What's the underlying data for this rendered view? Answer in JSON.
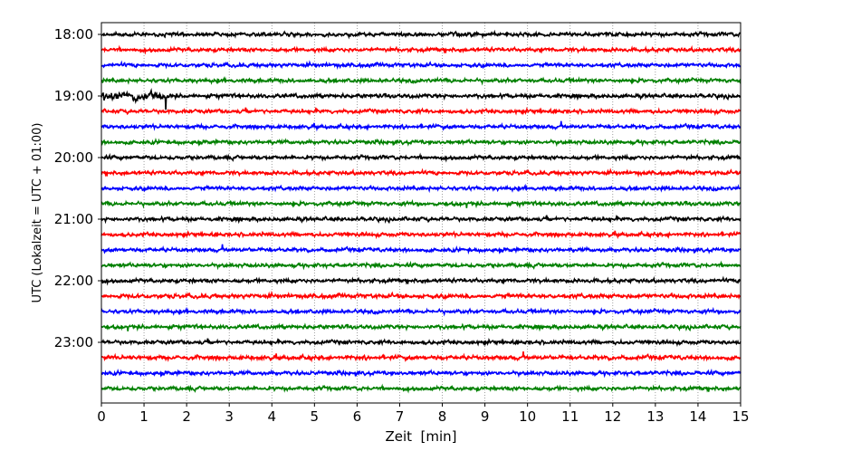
{
  "chart_data": {
    "type": "line",
    "subtype": "seismogram-dayplot",
    "xlabel": "Zeit  [min]",
    "ylabel": "UTC (Lokalzeit = UTC + 01:00)",
    "xlim": [
      0,
      15
    ],
    "xticks": [
      "0",
      "1",
      "2",
      "3",
      "4",
      "5",
      "6",
      "7",
      "8",
      "9",
      "10",
      "11",
      "12",
      "13",
      "14",
      "15"
    ],
    "yticks": [
      "18:00",
      "19:00",
      "20:00",
      "21:00",
      "22:00",
      "23:00"
    ],
    "grid": "vertical dotted at each minute",
    "trace_interval_min": 15,
    "color_cycle": [
      "#000000",
      "#ff0000",
      "#0000ff",
      "#008000"
    ],
    "traces": [
      {
        "start": "18:00",
        "noise": 1.0
      },
      {
        "start": "18:15",
        "noise": 1.0
      },
      {
        "start": "18:30",
        "noise": 1.0
      },
      {
        "start": "18:45",
        "noise": 1.0
      },
      {
        "start": "19:00",
        "noise": 1.0,
        "event": {
          "from_min": 0,
          "to_min": 1.6,
          "amp": 2.2
        }
      },
      {
        "start": "19:15",
        "noise": 1.0
      },
      {
        "start": "19:30",
        "noise": 1.0
      },
      {
        "start": "19:45",
        "noise": 1.0
      },
      {
        "start": "20:00",
        "noise": 1.0
      },
      {
        "start": "20:15",
        "noise": 1.0
      },
      {
        "start": "20:30",
        "noise": 1.0
      },
      {
        "start": "20:45",
        "noise": 1.0
      },
      {
        "start": "21:00",
        "noise": 1.0
      },
      {
        "start": "21:15",
        "noise": 1.0
      },
      {
        "start": "21:30",
        "noise": 1.0
      },
      {
        "start": "21:45",
        "noise": 1.0
      },
      {
        "start": "22:00",
        "noise": 1.0
      },
      {
        "start": "22:15",
        "noise": 1.1
      },
      {
        "start": "22:30",
        "noise": 1.0
      },
      {
        "start": "22:45",
        "noise": 1.0
      },
      {
        "start": "23:00",
        "noise": 1.0
      },
      {
        "start": "23:15",
        "noise": 1.1
      },
      {
        "start": "23:30",
        "noise": 1.0
      },
      {
        "start": "23:45",
        "noise": 1.0
      }
    ]
  }
}
